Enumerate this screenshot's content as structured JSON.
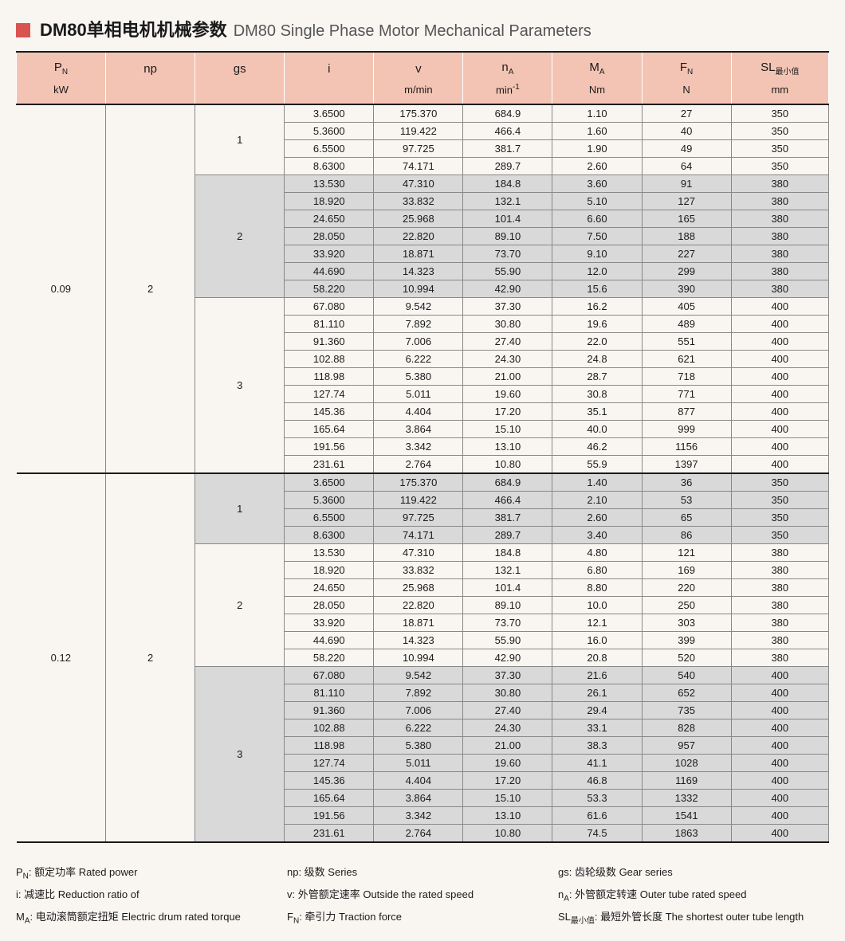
{
  "title": {
    "cn": "DM80单相电机机械参数",
    "en": "DM80 Single Phase Motor Mechanical Parameters"
  },
  "columns": [
    {
      "h1": "P",
      "sub": "N",
      "h2": "kW"
    },
    {
      "h1": "np",
      "sub": "",
      "h2": ""
    },
    {
      "h1": "gs",
      "sub": "",
      "h2": ""
    },
    {
      "h1": "i",
      "sub": "",
      "h2": ""
    },
    {
      "h1": "v",
      "sub": "",
      "h2": "m/min"
    },
    {
      "h1": "n",
      "sub": "A",
      "h2": "min",
      "sup": "-1"
    },
    {
      "h1": "M",
      "sub": "A",
      "h2": "Nm"
    },
    {
      "h1": "F",
      "sub": "N",
      "h2": "N"
    },
    {
      "h1": "SL",
      "sub": "最小值",
      "h2": "mm"
    }
  ],
  "blocks": [
    {
      "pn": "0.09",
      "np": "2",
      "groups": [
        {
          "gs": "1",
          "shade": false,
          "rows": [
            [
              "3.6500",
              "175.370",
              "684.9",
              "1.10",
              "27",
              "350"
            ],
            [
              "5.3600",
              "119.422",
              "466.4",
              "1.60",
              "40",
              "350"
            ],
            [
              "6.5500",
              "97.725",
              "381.7",
              "1.90",
              "49",
              "350"
            ],
            [
              "8.6300",
              "74.171",
              "289.7",
              "2.60",
              "64",
              "350"
            ]
          ]
        },
        {
          "gs": "2",
          "shade": true,
          "rows": [
            [
              "13.530",
              "47.310",
              "184.8",
              "3.60",
              "91",
              "380"
            ],
            [
              "18.920",
              "33.832",
              "132.1",
              "5.10",
              "127",
              "380"
            ],
            [
              "24.650",
              "25.968",
              "101.4",
              "6.60",
              "165",
              "380"
            ],
            [
              "28.050",
              "22.820",
              "89.10",
              "7.50",
              "188",
              "380"
            ],
            [
              "33.920",
              "18.871",
              "73.70",
              "9.10",
              "227",
              "380"
            ],
            [
              "44.690",
              "14.323",
              "55.90",
              "12.0",
              "299",
              "380"
            ],
            [
              "58.220",
              "10.994",
              "42.90",
              "15.6",
              "390",
              "380"
            ]
          ]
        },
        {
          "gs": "3",
          "shade": false,
          "rows": [
            [
              "67.080",
              "9.542",
              "37.30",
              "16.2",
              "405",
              "400"
            ],
            [
              "81.110",
              "7.892",
              "30.80",
              "19.6",
              "489",
              "400"
            ],
            [
              "91.360",
              "7.006",
              "27.40",
              "22.0",
              "551",
              "400"
            ],
            [
              "102.88",
              "6.222",
              "24.30",
              "24.8",
              "621",
              "400"
            ],
            [
              "118.98",
              "5.380",
              "21.00",
              "28.7",
              "718",
              "400"
            ],
            [
              "127.74",
              "5.011",
              "19.60",
              "30.8",
              "771",
              "400"
            ],
            [
              "145.36",
              "4.404",
              "17.20",
              "35.1",
              "877",
              "400"
            ],
            [
              "165.64",
              "3.864",
              "15.10",
              "40.0",
              "999",
              "400"
            ],
            [
              "191.56",
              "3.342",
              "13.10",
              "46.2",
              "1156",
              "400"
            ],
            [
              "231.61",
              "2.764",
              "10.80",
              "55.9",
              "1397",
              "400"
            ]
          ]
        }
      ]
    },
    {
      "pn": "0.12",
      "np": "2",
      "groups": [
        {
          "gs": "1",
          "shade": true,
          "rows": [
            [
              "3.6500",
              "175.370",
              "684.9",
              "1.40",
              "36",
              "350"
            ],
            [
              "5.3600",
              "119.422",
              "466.4",
              "2.10",
              "53",
              "350"
            ],
            [
              "6.5500",
              "97.725",
              "381.7",
              "2.60",
              "65",
              "350"
            ],
            [
              "8.6300",
              "74.171",
              "289.7",
              "3.40",
              "86",
              "350"
            ]
          ]
        },
        {
          "gs": "2",
          "shade": false,
          "rows": [
            [
              "13.530",
              "47.310",
              "184.8",
              "4.80",
              "121",
              "380"
            ],
            [
              "18.920",
              "33.832",
              "132.1",
              "6.80",
              "169",
              "380"
            ],
            [
              "24.650",
              "25.968",
              "101.4",
              "8.80",
              "220",
              "380"
            ],
            [
              "28.050",
              "22.820",
              "89.10",
              "10.0",
              "250",
              "380"
            ],
            [
              "33.920",
              "18.871",
              "73.70",
              "12.1",
              "303",
              "380"
            ],
            [
              "44.690",
              "14.323",
              "55.90",
              "16.0",
              "399",
              "380"
            ],
            [
              "58.220",
              "10.994",
              "42.90",
              "20.8",
              "520",
              "380"
            ]
          ]
        },
        {
          "gs": "3",
          "shade": true,
          "rows": [
            [
              "67.080",
              "9.542",
              "37.30",
              "21.6",
              "540",
              "400"
            ],
            [
              "81.110",
              "7.892",
              "30.80",
              "26.1",
              "652",
              "400"
            ],
            [
              "91.360",
              "7.006",
              "27.40",
              "29.4",
              "735",
              "400"
            ],
            [
              "102.88",
              "6.222",
              "24.30",
              "33.1",
              "828",
              "400"
            ],
            [
              "118.98",
              "5.380",
              "21.00",
              "38.3",
              "957",
              "400"
            ],
            [
              "127.74",
              "5.011",
              "19.60",
              "41.1",
              "1028",
              "400"
            ],
            [
              "145.36",
              "4.404",
              "17.20",
              "46.8",
              "1169",
              "400"
            ],
            [
              "165.64",
              "3.864",
              "15.10",
              "53.3",
              "1332",
              "400"
            ],
            [
              "191.56",
              "3.342",
              "13.10",
              "61.6",
              "1541",
              "400"
            ],
            [
              "231.61",
              "2.764",
              "10.80",
              "74.5",
              "1863",
              "400"
            ]
          ]
        }
      ]
    }
  ],
  "legend": [
    {
      "sym": "P",
      "sub": "N",
      "txt": ": 额定功率 Rated power"
    },
    {
      "sym": "np",
      "sub": "",
      "txt": ": 级数 Series"
    },
    {
      "sym": "gs",
      "sub": "",
      "txt": ": 齿轮级数 Gear series"
    },
    {
      "sym": "i",
      "sub": "",
      "txt": ": 减速比 Reduction ratio of"
    },
    {
      "sym": "v",
      "sub": "",
      "txt": ": 外管额定速率 Outside the rated speed"
    },
    {
      "sym": "n",
      "sub": "A",
      "txt": ": 外管额定转速 Outer tube rated speed"
    },
    {
      "sym": "M",
      "sub": "A",
      "txt": ": 电动滚筒额定扭矩 Electric drum rated torque"
    },
    {
      "sym": "F",
      "sub": "N",
      "txt": ": 牵引力 Traction force"
    },
    {
      "sym": "SL",
      "sub": "最小值",
      "txt": ": 最短外管长度 The shortest outer tube length"
    }
  ]
}
